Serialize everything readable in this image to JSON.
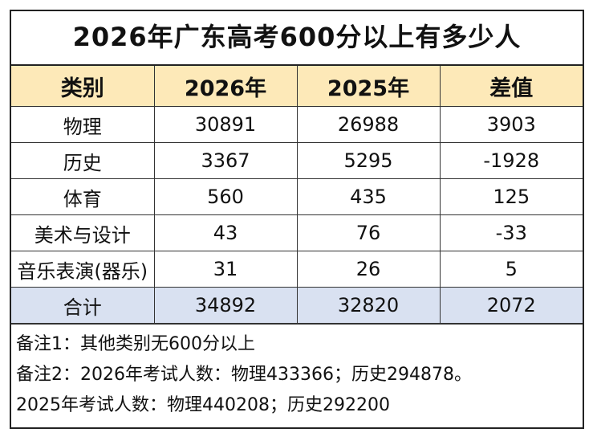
{
  "title": "2026年广东高考600分以上有多少人",
  "headers": [
    "类别",
    "2026年",
    "2025年",
    "差值"
  ],
  "rows": [
    [
      "物理",
      "30891",
      "26988",
      "3903"
    ],
    [
      "历史",
      "3367",
      "5295",
      "-1928"
    ],
    [
      "体育",
      "560",
      "435",
      "125"
    ],
    [
      "美术与设计",
      "43",
      "76",
      "-33"
    ],
    [
      "音乐表演(器乐)",
      "31",
      "26",
      "5"
    ]
  ],
  "total": [
    "合计",
    "34892",
    "32820",
    "2072"
  ],
  "notes": [
    "备注1：其他类别无600分以上",
    "备注2：2026年考试人数：物理433366；历史294878。",
    "2025年考试人数：物理440208；历史292200"
  ],
  "colors": {
    "header_bg": "#fde9b8",
    "total_bg": "#d9e1f1"
  }
}
